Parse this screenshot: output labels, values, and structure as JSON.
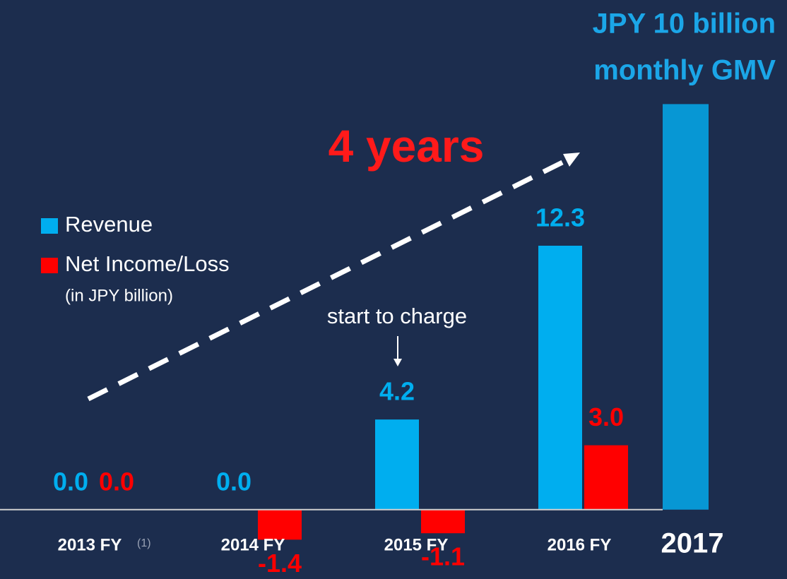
{
  "chart_data": {
    "type": "bar",
    "categories": [
      "2013 FY",
      "2014 FY",
      "2015 FY",
      "2016 FY",
      "2017"
    ],
    "category_footnote": "(1)",
    "series": [
      {
        "name": "Revenue",
        "color": "#00aeef",
        "values": [
          0,
          0,
          4.2,
          12.3,
          null
        ],
        "value_labels": [
          "0.0",
          "0.0",
          "4.2",
          "12.3",
          null
        ]
      },
      {
        "name": "Net Income/Loss",
        "color": "#ff0000",
        "values": [
          0,
          -1.4,
          -1.1,
          3.0,
          null
        ],
        "value_labels": [
          "0.0",
          "-1.4",
          "-1.1",
          "3.0",
          null
        ]
      }
    ],
    "legend_subtitle": "(in JPY billion)",
    "highlight_bar": {
      "value": 18.9,
      "color": "#0797d4",
      "label": [
        "JPY 10 billion",
        "monthly GMV"
      ]
    },
    "annotations": [
      "4 years",
      "start to charge"
    ],
    "ylim": [
      -3.2,
      20
    ]
  }
}
